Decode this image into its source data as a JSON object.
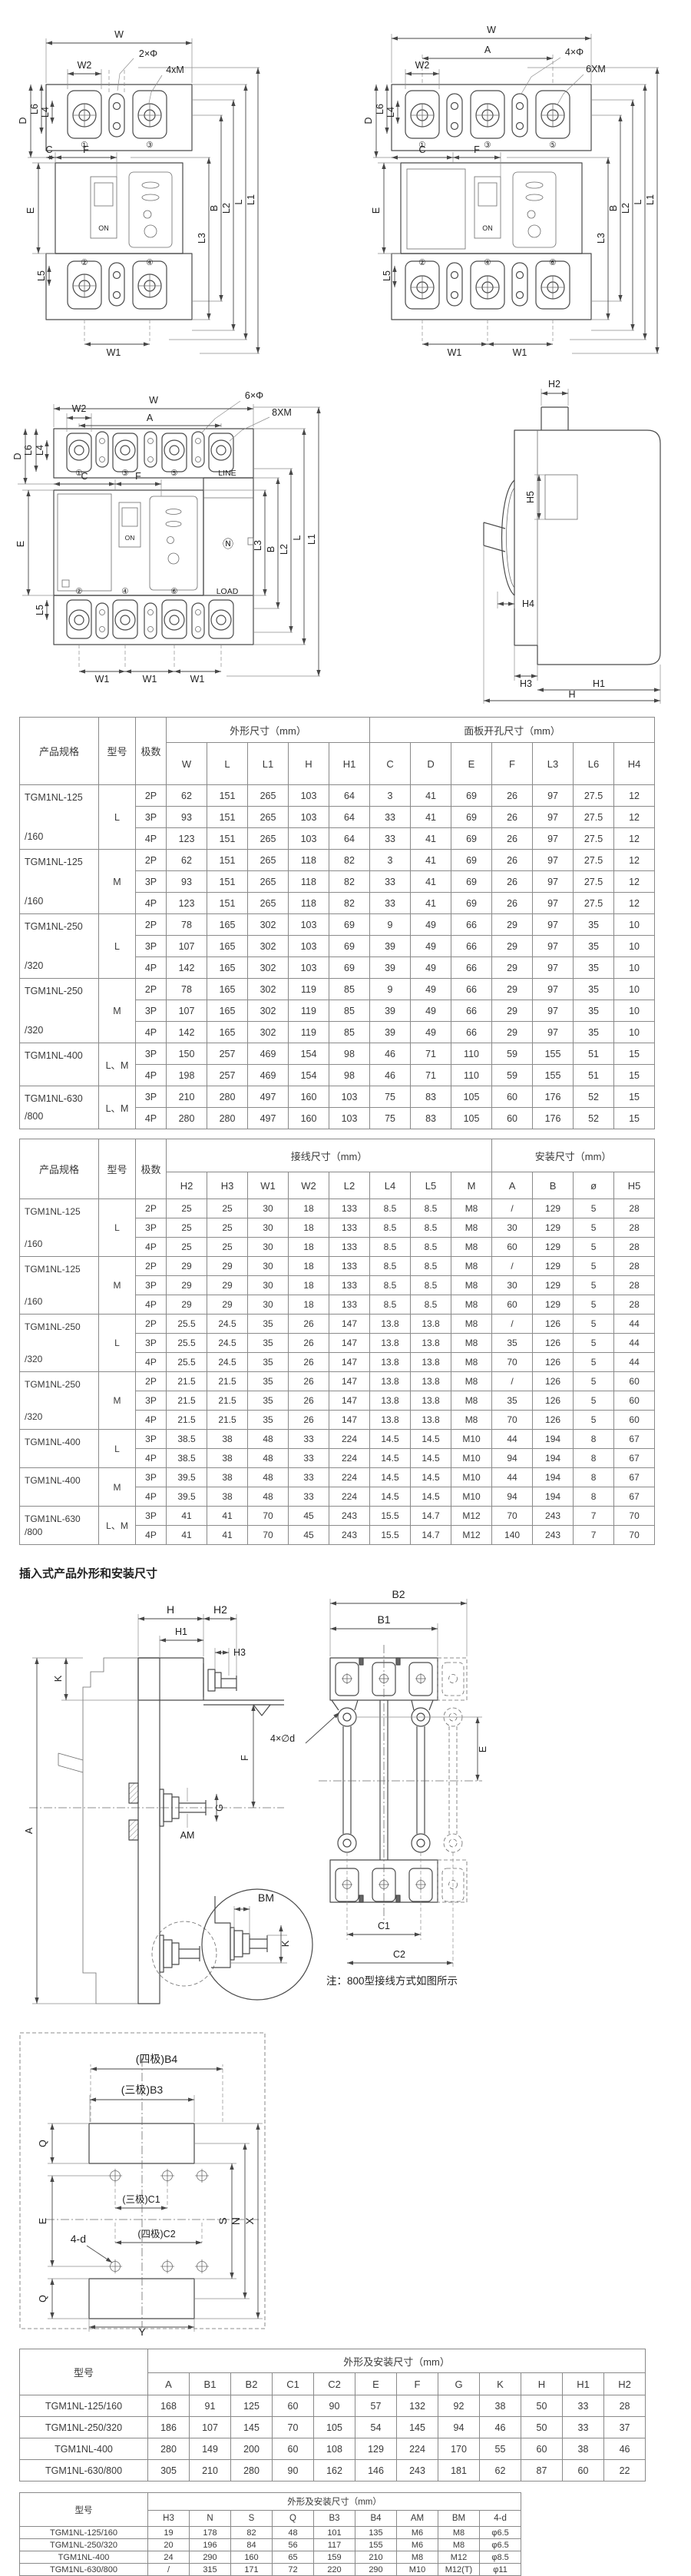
{
  "section_title": "插入式产品外形和安装尺寸",
  "note": "注：800型接线方式如图所示",
  "colors": {
    "line": "#4a4a4a",
    "table_border": "#8a8a8a",
    "text": "#333333"
  },
  "drawings": {
    "front2p": {
      "w": "W",
      "w2": "W2",
      "holes": "2×Φ",
      "screws": "4xM",
      "l6": "L6",
      "l4": "L4",
      "d": "D",
      "c": "C",
      "f": "F",
      "e": "E",
      "on": "ON",
      "t1": "①",
      "t3": "③",
      "t2": "②",
      "t4": "④",
      "l3": "L3",
      "b": "B",
      "l2": "L2",
      "l": "L",
      "l1": "L1",
      "l5": "L5",
      "w1": "W1"
    },
    "front3p": {
      "w": "W",
      "a": "A",
      "w2": "W2",
      "holes": "4×Φ",
      "screws": "6XM",
      "l6": "L6",
      "l4": "L4",
      "d": "D",
      "c": "C",
      "f": "F",
      "e": "E",
      "on": "ON",
      "t1": "①",
      "t3": "③",
      "t5": "⑤",
      "t2": "②",
      "t4": "④",
      "t6": "⑥",
      "l3": "L3",
      "b": "B",
      "l2": "L2",
      "l": "L",
      "l1": "L1",
      "l5": "L5",
      "w1": "W1"
    },
    "front4p": {
      "w": "W",
      "a": "A",
      "w2": "W2",
      "holes": "6×Φ",
      "screws": "8XM",
      "l6": "L6",
      "l4": "L4",
      "d": "D",
      "c": "C",
      "f": "F",
      "e": "E",
      "on": "ON",
      "n": "Ⓝ",
      "line": "LINE",
      "load": "LOAD",
      "t1": "①",
      "t3": "③",
      "t5": "⑤",
      "t2": "②",
      "t4": "④",
      "t6": "⑥",
      "l3": "L3",
      "b": "B",
      "l2": "L2",
      "l": "L",
      "l1": "L1",
      "l5": "L5",
      "w1": "W1"
    },
    "side": {
      "h2": "H2",
      "h5": "H5",
      "h4": "H4",
      "h3": "H3",
      "h1": "H1",
      "h": "H"
    },
    "plugin_side": {
      "h": "H",
      "h2": "H2",
      "h1": "H1",
      "h3": "H3",
      "k": "K",
      "a": "A",
      "am": "AM",
      "g": "G",
      "f": "F"
    },
    "plugin_base": {
      "b2": "B2",
      "b1": "B1",
      "d": "4×∅d",
      "e": "E",
      "c1": "C1",
      "c2": "C2"
    },
    "detail": {
      "bm": "BM",
      "k": "K"
    },
    "plan": {
      "b4": "(四极)B4",
      "b3": "(三极)B3",
      "q": "Q",
      "e": "E",
      "c1": "(三极)C1",
      "c2": "(四极)C2",
      "d4": "4-d",
      "s": "S",
      "n": "N",
      "x": "X",
      "y": "Y"
    }
  },
  "tables": {
    "outline": {
      "groups": [
        {
          "label": "产品规格",
          "rs": 2
        },
        {
          "label": "型号",
          "rs": 2
        },
        {
          "label": "极数",
          "rs": 2
        },
        {
          "label": "外形尺寸（mm）",
          "cs": 5
        },
        {
          "label": "面板开孔尺寸（mm）",
          "cs": 7
        }
      ],
      "sub": [
        "W",
        "L",
        "L1",
        "H",
        "H1",
        "C",
        "D",
        "E",
        "F",
        "L3",
        "L6",
        "H4"
      ],
      "body": [
        {
          "p": [
            "TGM1NL-125",
            "/160"
          ],
          "m": "L",
          "rows": [
            [
              "2P",
              "62",
              "151",
              "265",
              "103",
              "64",
              "3",
              "41",
              "69",
              "26",
              "97",
              "27.5",
              "12"
            ],
            [
              "3P",
              "93",
              "151",
              "265",
              "103",
              "64",
              "33",
              "41",
              "69",
              "26",
              "97",
              "27.5",
              "12"
            ],
            [
              "4P",
              "123",
              "151",
              "265",
              "103",
              "64",
              "33",
              "41",
              "69",
              "26",
              "97",
              "27.5",
              "12"
            ]
          ]
        },
        {
          "p": [
            "TGM1NL-125",
            "/160"
          ],
          "m": "M",
          "rows": [
            [
              "2P",
              "62",
              "151",
              "265",
              "118",
              "82",
              "3",
              "41",
              "69",
              "26",
              "97",
              "27.5",
              "12"
            ],
            [
              "3P",
              "93",
              "151",
              "265",
              "118",
              "82",
              "33",
              "41",
              "69",
              "26",
              "97",
              "27.5",
              "12"
            ],
            [
              "4P",
              "123",
              "151",
              "265",
              "118",
              "82",
              "33",
              "41",
              "69",
              "26",
              "97",
              "27.5",
              "12"
            ]
          ]
        },
        {
          "p": [
            "TGM1NL-250",
            "/320"
          ],
          "m": "L",
          "rows": [
            [
              "2P",
              "78",
              "165",
              "302",
              "103",
              "69",
              "9",
              "49",
              "66",
              "29",
              "97",
              "35",
              "10"
            ],
            [
              "3P",
              "107",
              "165",
              "302",
              "103",
              "69",
              "39",
              "49",
              "66",
              "29",
              "97",
              "35",
              "10"
            ],
            [
              "4P",
              "142",
              "165",
              "302",
              "103",
              "69",
              "39",
              "49",
              "66",
              "29",
              "97",
              "35",
              "10"
            ]
          ]
        },
        {
          "p": [
            "TGM1NL-250",
            "/320"
          ],
          "m": "M",
          "rows": [
            [
              "2P",
              "78",
              "165",
              "302",
              "119",
              "85",
              "9",
              "49",
              "66",
              "29",
              "97",
              "35",
              "10"
            ],
            [
              "3P",
              "107",
              "165",
              "302",
              "119",
              "85",
              "39",
              "49",
              "66",
              "29",
              "97",
              "35",
              "10"
            ],
            [
              "4P",
              "142",
              "165",
              "302",
              "119",
              "85",
              "39",
              "49",
              "66",
              "29",
              "97",
              "35",
              "10"
            ]
          ]
        },
        {
          "p": [
            "TGM1NL-400"
          ],
          "m": "L、M",
          "rows": [
            [
              "3P",
              "150",
              "257",
              "469",
              "154",
              "98",
              "46",
              "71",
              "110",
              "59",
              "155",
              "51",
              "15"
            ],
            [
              "4P",
              "198",
              "257",
              "469",
              "154",
              "98",
              "46",
              "71",
              "110",
              "59",
              "155",
              "51",
              "15"
            ]
          ]
        },
        {
          "p": [
            "TGM1NL-630",
            "/800"
          ],
          "m": "L、M",
          "rows": [
            [
              "3P",
              "210",
              "280",
              "497",
              "160",
              "103",
              "75",
              "83",
              "105",
              "60",
              "176",
              "52",
              "15"
            ],
            [
              "4P",
              "280",
              "280",
              "497",
              "160",
              "103",
              "75",
              "83",
              "105",
              "60",
              "176",
              "52",
              "15"
            ]
          ]
        }
      ]
    },
    "wiring": {
      "groups": [
        {
          "label": "产品规格",
          "rs": 2
        },
        {
          "label": "型号",
          "rs": 2
        },
        {
          "label": "极数",
          "rs": 2
        },
        {
          "label": "接线尺寸（mm）",
          "cs": 8
        },
        {
          "label": "安装尺寸（mm）",
          "cs": 4
        }
      ],
      "sub": [
        "H2",
        "H3",
        "W1",
        "W2",
        "L2",
        "L4",
        "L5",
        "M",
        "A",
        "B",
        "ø",
        "H5"
      ],
      "body": [
        {
          "p": [
            "TGM1NL-125",
            "/160"
          ],
          "m": "L",
          "rows": [
            [
              "2P",
              "25",
              "25",
              "30",
              "18",
              "133",
              "8.5",
              "8.5",
              "M8",
              "/",
              "129",
              "5",
              "28"
            ],
            [
              "3P",
              "25",
              "25",
              "30",
              "18",
              "133",
              "8.5",
              "8.5",
              "M8",
              "30",
              "129",
              "5",
              "28"
            ],
            [
              "4P",
              "25",
              "25",
              "30",
              "18",
              "133",
              "8.5",
              "8.5",
              "M8",
              "60",
              "129",
              "5",
              "28"
            ]
          ]
        },
        {
          "p": [
            "TGM1NL-125",
            "/160"
          ],
          "m": "M",
          "rows": [
            [
              "2P",
              "29",
              "29",
              "30",
              "18",
              "133",
              "8.5",
              "8.5",
              "M8",
              "/",
              "129",
              "5",
              "28"
            ],
            [
              "3P",
              "29",
              "29",
              "30",
              "18",
              "133",
              "8.5",
              "8.5",
              "M8",
              "30",
              "129",
              "5",
              "28"
            ],
            [
              "4P",
              "29",
              "29",
              "30",
              "18",
              "133",
              "8.5",
              "8.5",
              "M8",
              "60",
              "129",
              "5",
              "28"
            ]
          ]
        },
        {
          "p": [
            "TGM1NL-250",
            "/320"
          ],
          "m": "L",
          "rows": [
            [
              "2P",
              "25.5",
              "24.5",
              "35",
              "26",
              "147",
              "13.8",
              "13.8",
              "M8",
              "/",
              "126",
              "5",
              "44"
            ],
            [
              "3P",
              "25.5",
              "24.5",
              "35",
              "26",
              "147",
              "13.8",
              "13.8",
              "M8",
              "35",
              "126",
              "5",
              "44"
            ],
            [
              "4P",
              "25.5",
              "24.5",
              "35",
              "26",
              "147",
              "13.8",
              "13.8",
              "M8",
              "70",
              "126",
              "5",
              "44"
            ]
          ]
        },
        {
          "p": [
            "TGM1NL-250",
            "/320"
          ],
          "m": "M",
          "rows": [
            [
              "2P",
              "21.5",
              "21.5",
              "35",
              "26",
              "147",
              "13.8",
              "13.8",
              "M8",
              "/",
              "126",
              "5",
              "60"
            ],
            [
              "3P",
              "21.5",
              "21.5",
              "35",
              "26",
              "147",
              "13.8",
              "13.8",
              "M8",
              "35",
              "126",
              "5",
              "60"
            ],
            [
              "4P",
              "21.5",
              "21.5",
              "35",
              "26",
              "147",
              "13.8",
              "13.8",
              "M8",
              "70",
              "126",
              "5",
              "60"
            ]
          ]
        },
        {
          "p": [
            "TGM1NL-400"
          ],
          "m": "L",
          "rows": [
            [
              "3P",
              "38.5",
              "38",
              "48",
              "33",
              "224",
              "14.5",
              "14.5",
              "M10",
              "44",
              "194",
              "8",
              "67"
            ],
            [
              "4P",
              "38.5",
              "38",
              "48",
              "33",
              "224",
              "14.5",
              "14.5",
              "M10",
              "94",
              "194",
              "8",
              "67"
            ]
          ]
        },
        {
          "p": [
            "TGM1NL-400"
          ],
          "m": "M",
          "rows": [
            [
              "3P",
              "39.5",
              "38",
              "48",
              "33",
              "224",
              "14.5",
              "14.5",
              "M10",
              "44",
              "194",
              "8",
              "67"
            ],
            [
              "4P",
              "39.5",
              "38",
              "48",
              "33",
              "224",
              "14.5",
              "14.5",
              "M10",
              "94",
              "194",
              "8",
              "67"
            ]
          ]
        },
        {
          "p": [
            "TGM1NL-630",
            "/800"
          ],
          "m": "L、M",
          "rows": [
            [
              "3P",
              "41",
              "41",
              "70",
              "45",
              "243",
              "15.5",
              "14.7",
              "M12",
              "70",
              "243",
              "7",
              "70"
            ],
            [
              "4P",
              "41",
              "41",
              "70",
              "45",
              "243",
              "15.5",
              "14.7",
              "M12",
              "140",
              "243",
              "7",
              "70"
            ]
          ]
        }
      ]
    },
    "plugin_outline": {
      "groups": [
        {
          "label": "型号",
          "rs": 2
        },
        {
          "label": "外形及安装尺寸（mm）",
          "cs": 12
        }
      ],
      "sub": [
        "A",
        "B1",
        "B2",
        "C1",
        "C2",
        "E",
        "F",
        "G",
        "K",
        "H",
        "H1",
        "H2"
      ],
      "rows": [
        [
          "TGM1NL-125/160",
          "168",
          "91",
          "125",
          "60",
          "90",
          "57",
          "132",
          "92",
          "38",
          "50",
          "33",
          "28"
        ],
        [
          "TGM1NL-250/320",
          "186",
          "107",
          "145",
          "70",
          "105",
          "54",
          "145",
          "94",
          "46",
          "50",
          "33",
          "37"
        ],
        [
          "TGM1NL-400",
          "280",
          "149",
          "200",
          "60",
          "108",
          "129",
          "224",
          "170",
          "55",
          "60",
          "38",
          "46"
        ],
        [
          "TGM1NL-630/800",
          "305",
          "210",
          "280",
          "90",
          "162",
          "146",
          "243",
          "181",
          "62",
          "87",
          "60",
          "22"
        ]
      ]
    },
    "plugin_wiring": {
      "groups": [
        {
          "label": "型号",
          "rs": 2
        },
        {
          "label": "外形及安装尺寸（mm）",
          "cs": 9
        }
      ],
      "sub": [
        "H3",
        "N",
        "S",
        "Q",
        "B3",
        "B4",
        "AM",
        "BM",
        "4-d"
      ],
      "rows": [
        [
          "TGM1NL-125/160",
          "19",
          "178",
          "82",
          "48",
          "101",
          "135",
          "M6",
          "M8",
          "φ6.5"
        ],
        [
          "TGM1NL-250/320",
          "20",
          "196",
          "84",
          "56",
          "117",
          "155",
          "M6",
          "M8",
          "φ6.5"
        ],
        [
          "TGM1NL-400",
          "24",
          "290",
          "160",
          "65",
          "159",
          "210",
          "M8",
          "M12",
          "φ8.5"
        ],
        [
          "TGM1NL-630/800",
          "/",
          "315",
          "171",
          "72",
          "220",
          "290",
          "M10",
          "M12(T)",
          "φ11"
        ]
      ]
    }
  }
}
